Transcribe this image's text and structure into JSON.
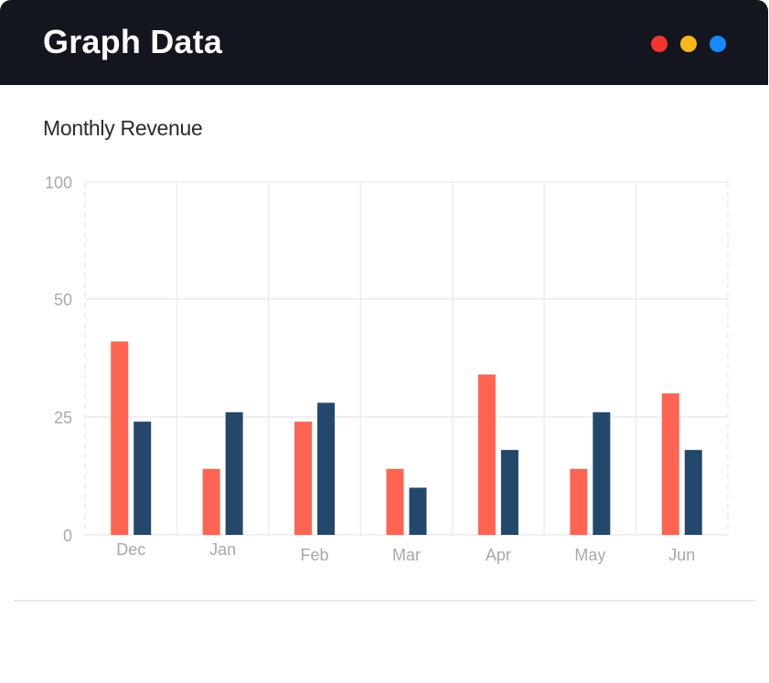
{
  "window": {
    "title": "Graph Data",
    "controls": [
      {
        "name": "close",
        "color": "#f2352c"
      },
      {
        "name": "minimize",
        "color": "#fbb81a"
      },
      {
        "name": "maximize",
        "color": "#1689ff"
      }
    ]
  },
  "chart_data": {
    "type": "bar",
    "title": "Monthly Revenue",
    "xlabel": "",
    "ylabel": "",
    "categories": [
      "Dec",
      "Jan",
      "Feb",
      "Mar",
      "Apr",
      "May",
      "Jun"
    ],
    "series": [
      {
        "values": [
          41,
          14,
          24,
          14,
          34,
          14,
          30
        ],
        "color": "#ff6452"
      },
      {
        "values": [
          24,
          26,
          28,
          10,
          18,
          26,
          18
        ],
        "color": "#23486b"
      }
    ],
    "y_ticks": [
      0,
      25,
      50,
      100
    ],
    "ylim": [
      0,
      100
    ],
    "grid": true,
    "legend": "none"
  }
}
